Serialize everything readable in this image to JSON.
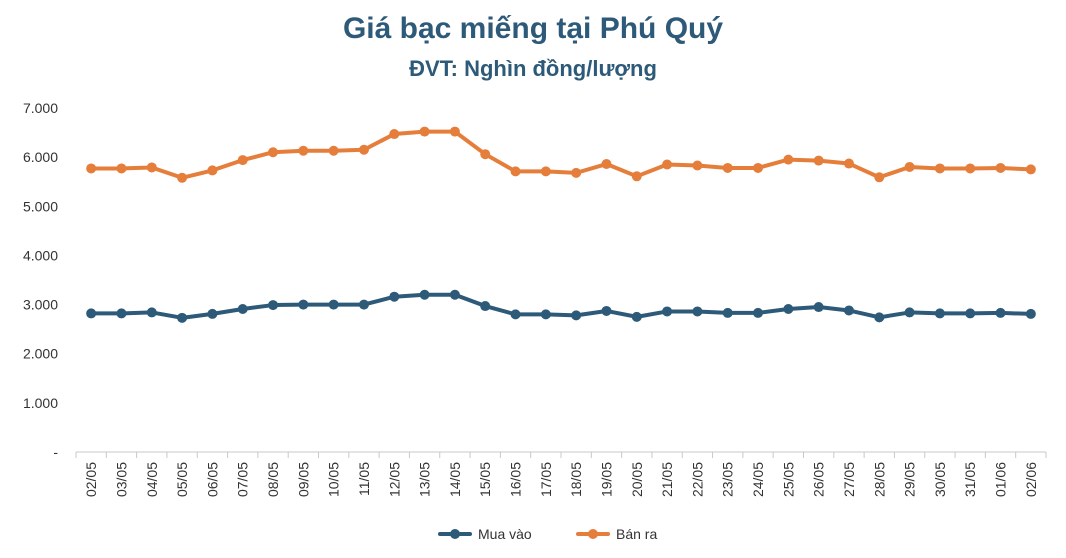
{
  "chart_data": {
    "type": "line",
    "title": "Giá bạc miếng tại Phú Quý",
    "subtitle": "ĐVT: Nghìn đồng/lượng",
    "xlabel": "",
    "ylabel": "",
    "ylim": [
      0,
      7000
    ],
    "yticks": [
      "-",
      "1.000",
      "2.000",
      "3.000",
      "4.000",
      "5.000",
      "6.000",
      "7.000"
    ],
    "grid": false,
    "legend": "bottom",
    "categories": [
      "02/05",
      "03/05",
      "04/05",
      "05/05",
      "06/05",
      "07/05",
      "08/05",
      "09/05",
      "10/05",
      "11/05",
      "12/05",
      "13/05",
      "14/05",
      "15/05",
      "16/05",
      "17/05",
      "18/05",
      "19/05",
      "20/05",
      "21/05",
      "22/05",
      "23/05",
      "24/05",
      "25/05",
      "26/05",
      "27/05",
      "28/05",
      "29/05",
      "30/05",
      "31/05",
      "01/06",
      "02/06"
    ],
    "series": [
      {
        "name": "Mua vào",
        "color": "#2e5a79",
        "values": [
          2820,
          2820,
          2840,
          2730,
          2810,
          2910,
          2990,
          3000,
          3000,
          3000,
          3160,
          3200,
          3200,
          2970,
          2800,
          2800,
          2780,
          2870,
          2750,
          2860,
          2860,
          2830,
          2830,
          2910,
          2950,
          2880,
          2740,
          2840,
          2820,
          2820,
          2830,
          2810
        ]
      },
      {
        "name": "Bán ra",
        "color": "#e67e3b",
        "values": [
          5770,
          5770,
          5790,
          5580,
          5730,
          5940,
          6100,
          6130,
          6130,
          6150,
          6470,
          6520,
          6520,
          6060,
          5710,
          5710,
          5680,
          5860,
          5610,
          5850,
          5830,
          5780,
          5780,
          5950,
          5930,
          5870,
          5590,
          5800,
          5770,
          5770,
          5780,
          5750
        ]
      }
    ]
  }
}
